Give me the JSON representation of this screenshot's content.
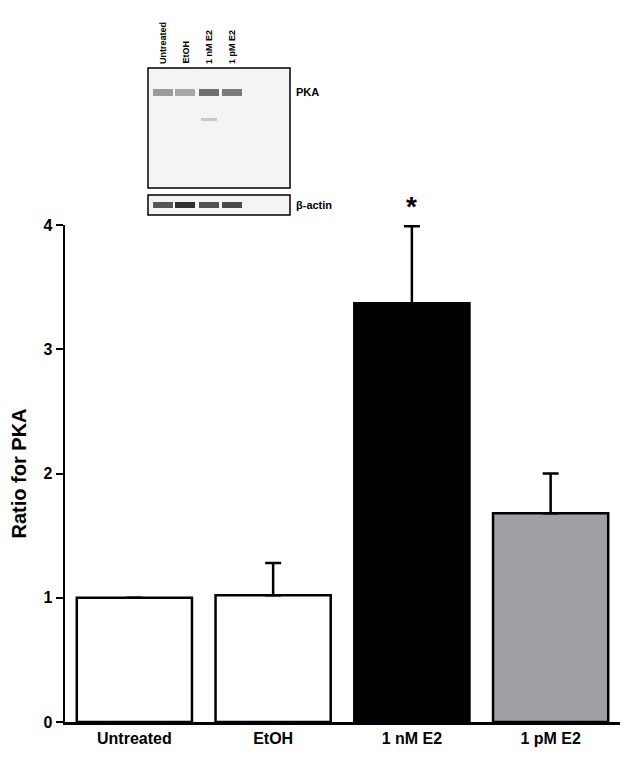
{
  "chart_data": {
    "type": "bar",
    "categories": [
      "Untreated",
      "EtOH",
      "1 nM E2",
      "1 pM E2"
    ],
    "values": [
      1,
      1.02,
      3.37,
      1.68
    ],
    "errors": [
      null,
      0.26,
      0.62,
      0.32
    ],
    "colors": [
      "#ffffff",
      "#ffffff",
      "#000000",
      "#a0a0a4"
    ],
    "y_label": "Ratio for PKA",
    "ylim": [
      0,
      4
    ],
    "yticks": [
      0,
      1,
      2,
      3,
      4
    ],
    "grid": false,
    "annotations": [
      {
        "category": "1 nM E2",
        "text": "*"
      }
    ],
    "inset": {
      "lane_labels": [
        "Untreated",
        "EtOH",
        "1 nM E2",
        "1 pM E2"
      ],
      "band_labels": [
        "PKA",
        "β-actin"
      ]
    }
  }
}
